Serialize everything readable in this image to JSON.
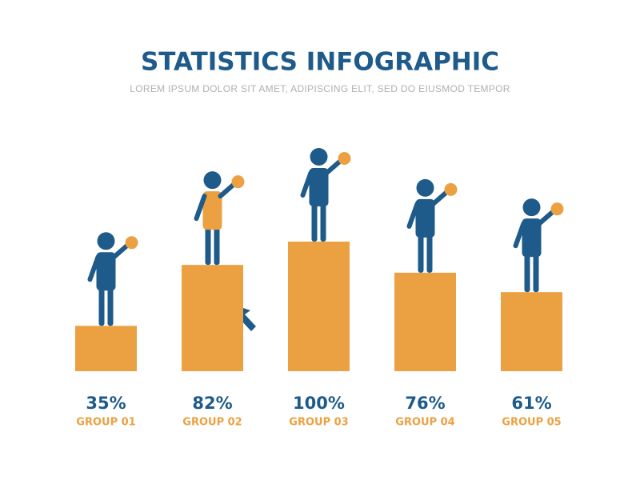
{
  "chart_data": {
    "type": "bar",
    "title": "STATISTICS INFOGRAPHIC",
    "subtitle": "LOREM IPSUM DOLOR SIT AMET, ADIPISCING ELIT, SED DO EIUSMOD TEMPOR",
    "categories": [
      "GROUP 01",
      "GROUP 02",
      "GROUP 03",
      "GROUP 04",
      "GROUP 05"
    ],
    "values": [
      35,
      82,
      100,
      76,
      61
    ],
    "value_labels": [
      "35%",
      "82%",
      "100%",
      "76%",
      "61%"
    ],
    "color": "#eba142",
    "ylim": [
      0,
      100
    ]
  }
}
